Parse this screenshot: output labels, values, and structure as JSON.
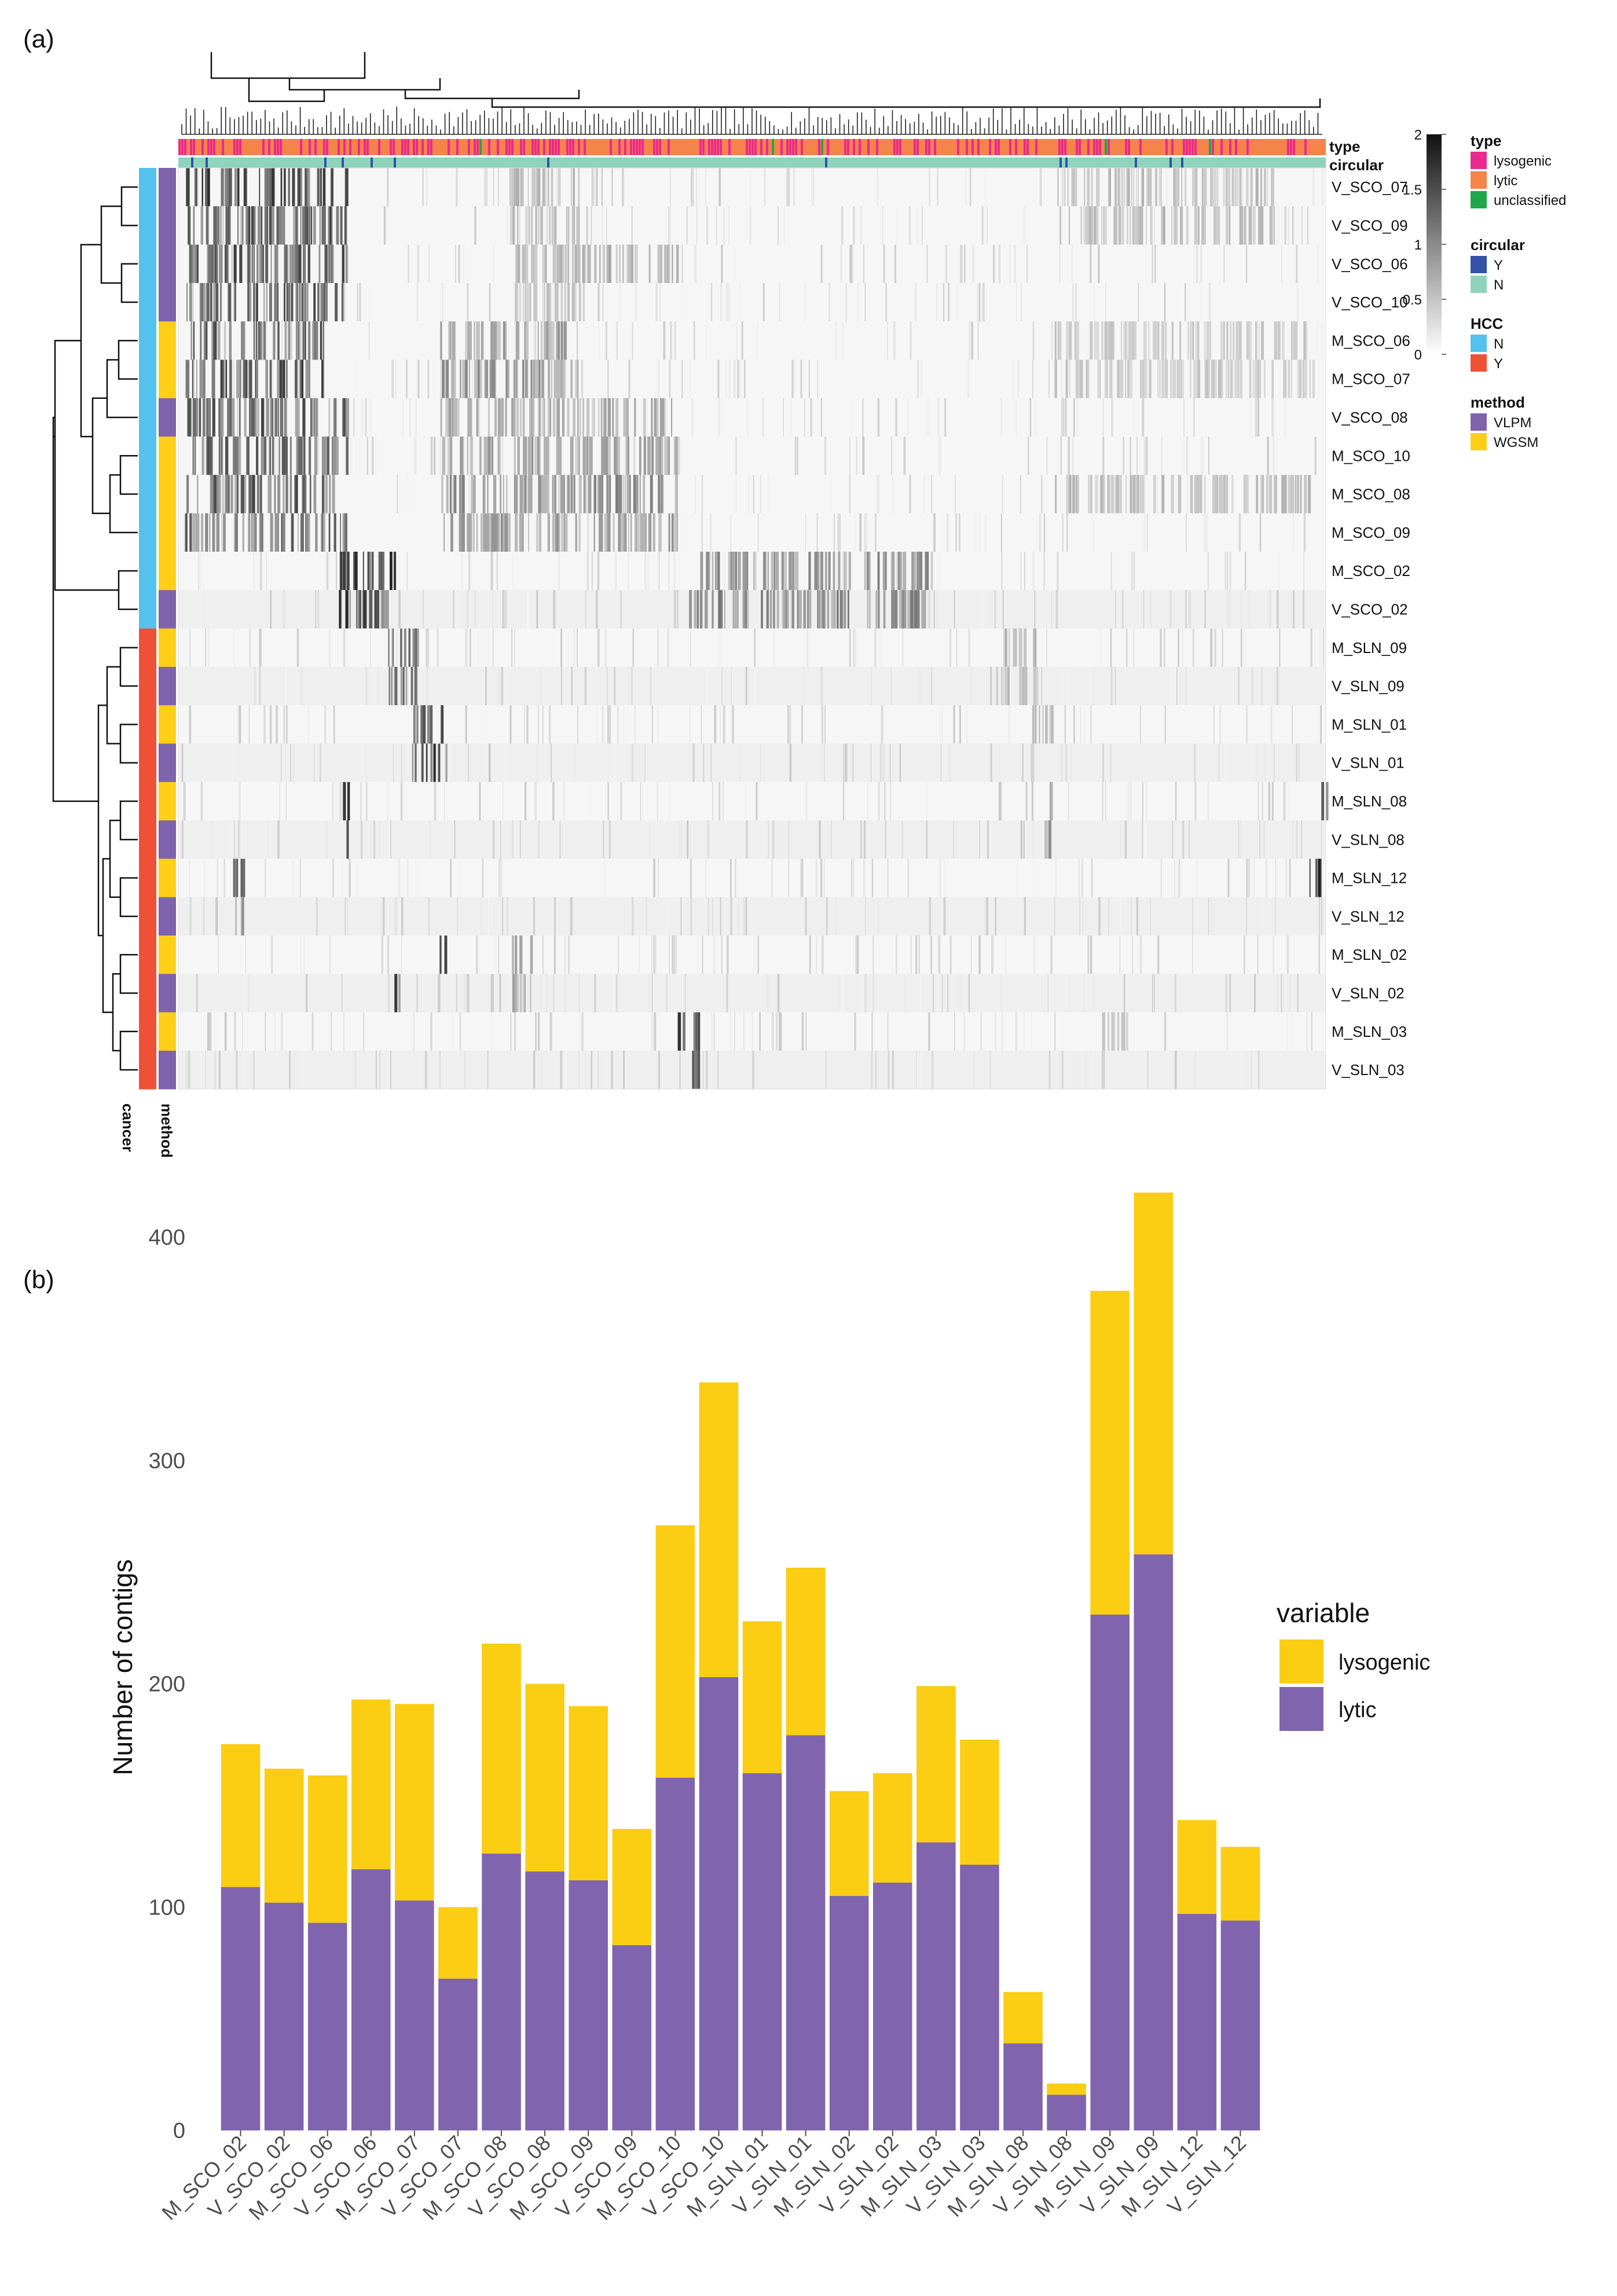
{
  "panel_a_label": "(a)",
  "panel_b_label": "(b)",
  "colors": {
    "lysogenic": "#ea2a8c",
    "lytic": "#f4844a",
    "unclassified": "#22a64b",
    "circ_Y": "#3352a8",
    "circ_N": "#8fd3bd",
    "hcc_N": "#54c1ee",
    "hcc_Y": "#ef5137",
    "vlpm": "#7f63ad",
    "wgsm": "#fdd017",
    "bar_lysogenic": "#fbcd13",
    "bar_lytic": "#8065ae"
  },
  "heatmap": {
    "type_label": "type",
    "circular_label": "circular",
    "cancer_label": "cancer",
    "method_label": "method",
    "rows": [
      "V_SCO_07",
      "V_SCO_09",
      "V_SCO_06",
      "V_SCO_10",
      "M_SCO_06",
      "M_SCO_07",
      "V_SCO_08",
      "M_SCO_10",
      "M_SCO_08",
      "M_SCO_09",
      "M_SCO_02",
      "V_SCO_02",
      "M_SLN_09",
      "V_SLN_09",
      "M_SLN_01",
      "V_SLN_01",
      "M_SLN_08",
      "V_SLN_08",
      "M_SLN_12",
      "V_SLN_12",
      "M_SLN_02",
      "V_SLN_02",
      "M_SLN_03",
      "V_SLN_03"
    ],
    "hcc": [
      "N",
      "N",
      "N",
      "N",
      "N",
      "N",
      "N",
      "N",
      "N",
      "N",
      "N",
      "N",
      "Y",
      "Y",
      "Y",
      "Y",
      "Y",
      "Y",
      "Y",
      "Y",
      "Y",
      "Y",
      "Y",
      "Y"
    ],
    "method": [
      "VLPM",
      "VLPM",
      "VLPM",
      "VLPM",
      "WGSM",
      "WGSM",
      "VLPM",
      "WGSM",
      "WGSM",
      "WGSM",
      "WGSM",
      "VLPM",
      "WGSM",
      "VLPM",
      "WGSM",
      "VLPM",
      "WGSM",
      "VLPM",
      "WGSM",
      "VLPM",
      "WGSM",
      "VLPM",
      "WGSM",
      "VLPM"
    ],
    "scale": {
      "ticks": [
        "2",
        "1.5",
        "1",
        "0.5",
        "0"
      ],
      "min": 0,
      "max": 2
    }
  },
  "legend": {
    "type_title": "type",
    "type_items": [
      "lysogenic",
      "lytic",
      "unclassified"
    ],
    "circular_title": "circular",
    "circular_items": [
      "Y",
      "N"
    ],
    "hcc_title": "HCC",
    "hcc_items": [
      "N",
      "Y"
    ],
    "method_title": "method",
    "method_items": [
      "VLPM",
      "WGSM"
    ]
  },
  "chart_data": [
    {
      "type": "heatmap",
      "title": "",
      "rows": [
        "V_SCO_07",
        "V_SCO_09",
        "V_SCO_06",
        "V_SCO_10",
        "M_SCO_06",
        "M_SCO_07",
        "V_SCO_08",
        "M_SCO_10",
        "M_SCO_08",
        "M_SCO_09",
        "M_SCO_02",
        "V_SCO_02",
        "M_SLN_09",
        "V_SLN_09",
        "M_SLN_01",
        "V_SLN_01",
        "M_SLN_08",
        "V_SLN_08",
        "M_SLN_12",
        "V_SLN_12",
        "M_SLN_02",
        "V_SLN_02",
        "M_SLN_03",
        "V_SLN_03"
      ],
      "value_range": [
        0,
        2
      ],
      "colorscale": "white-to-black"
    },
    {
      "type": "bar",
      "stacked": true,
      "categories": [
        "M_SCO_02",
        "V_SCO_02",
        "M_SCO_06",
        "V_SCO_06",
        "M_SCO_07",
        "V_SCO_07",
        "M_SCO_08",
        "V_SCO_08",
        "M_SCO_09",
        "V_SCO_09",
        "M_SCO_10",
        "V_SCO_10",
        "M_SLN_01",
        "V_SLN_01",
        "M_SLN_02",
        "V_SLN_02",
        "M_SLN_03",
        "V_SLN_03",
        "M_SLN_08",
        "V_SLN_08",
        "M_SLN_09",
        "V_SLN_09",
        "M_SLN_12",
        "V_SLN_12"
      ],
      "series": [
        {
          "name": "lytic",
          "values": [
            109,
            102,
            93,
            117,
            103,
            68,
            124,
            116,
            112,
            83,
            158,
            203,
            160,
            177,
            105,
            111,
            129,
            119,
            39,
            16,
            231,
            258,
            97,
            94
          ]
        },
        {
          "name": "lysogenic",
          "values": [
            64,
            60,
            66,
            76,
            88,
            32,
            94,
            84,
            78,
            52,
            113,
            132,
            68,
            75,
            47,
            49,
            70,
            56,
            23,
            5,
            145,
            162,
            42,
            33
          ]
        }
      ],
      "title": "",
      "xlabel": "",
      "ylabel": "Number of contigs",
      "ylim": [
        0,
        420
      ],
      "yticks": [
        "0",
        "100",
        "200",
        "300",
        "400"
      ],
      "legend_title": "variable",
      "legend_items": [
        "lysogenic",
        "lytic"
      ],
      "legend_position": "right"
    }
  ]
}
